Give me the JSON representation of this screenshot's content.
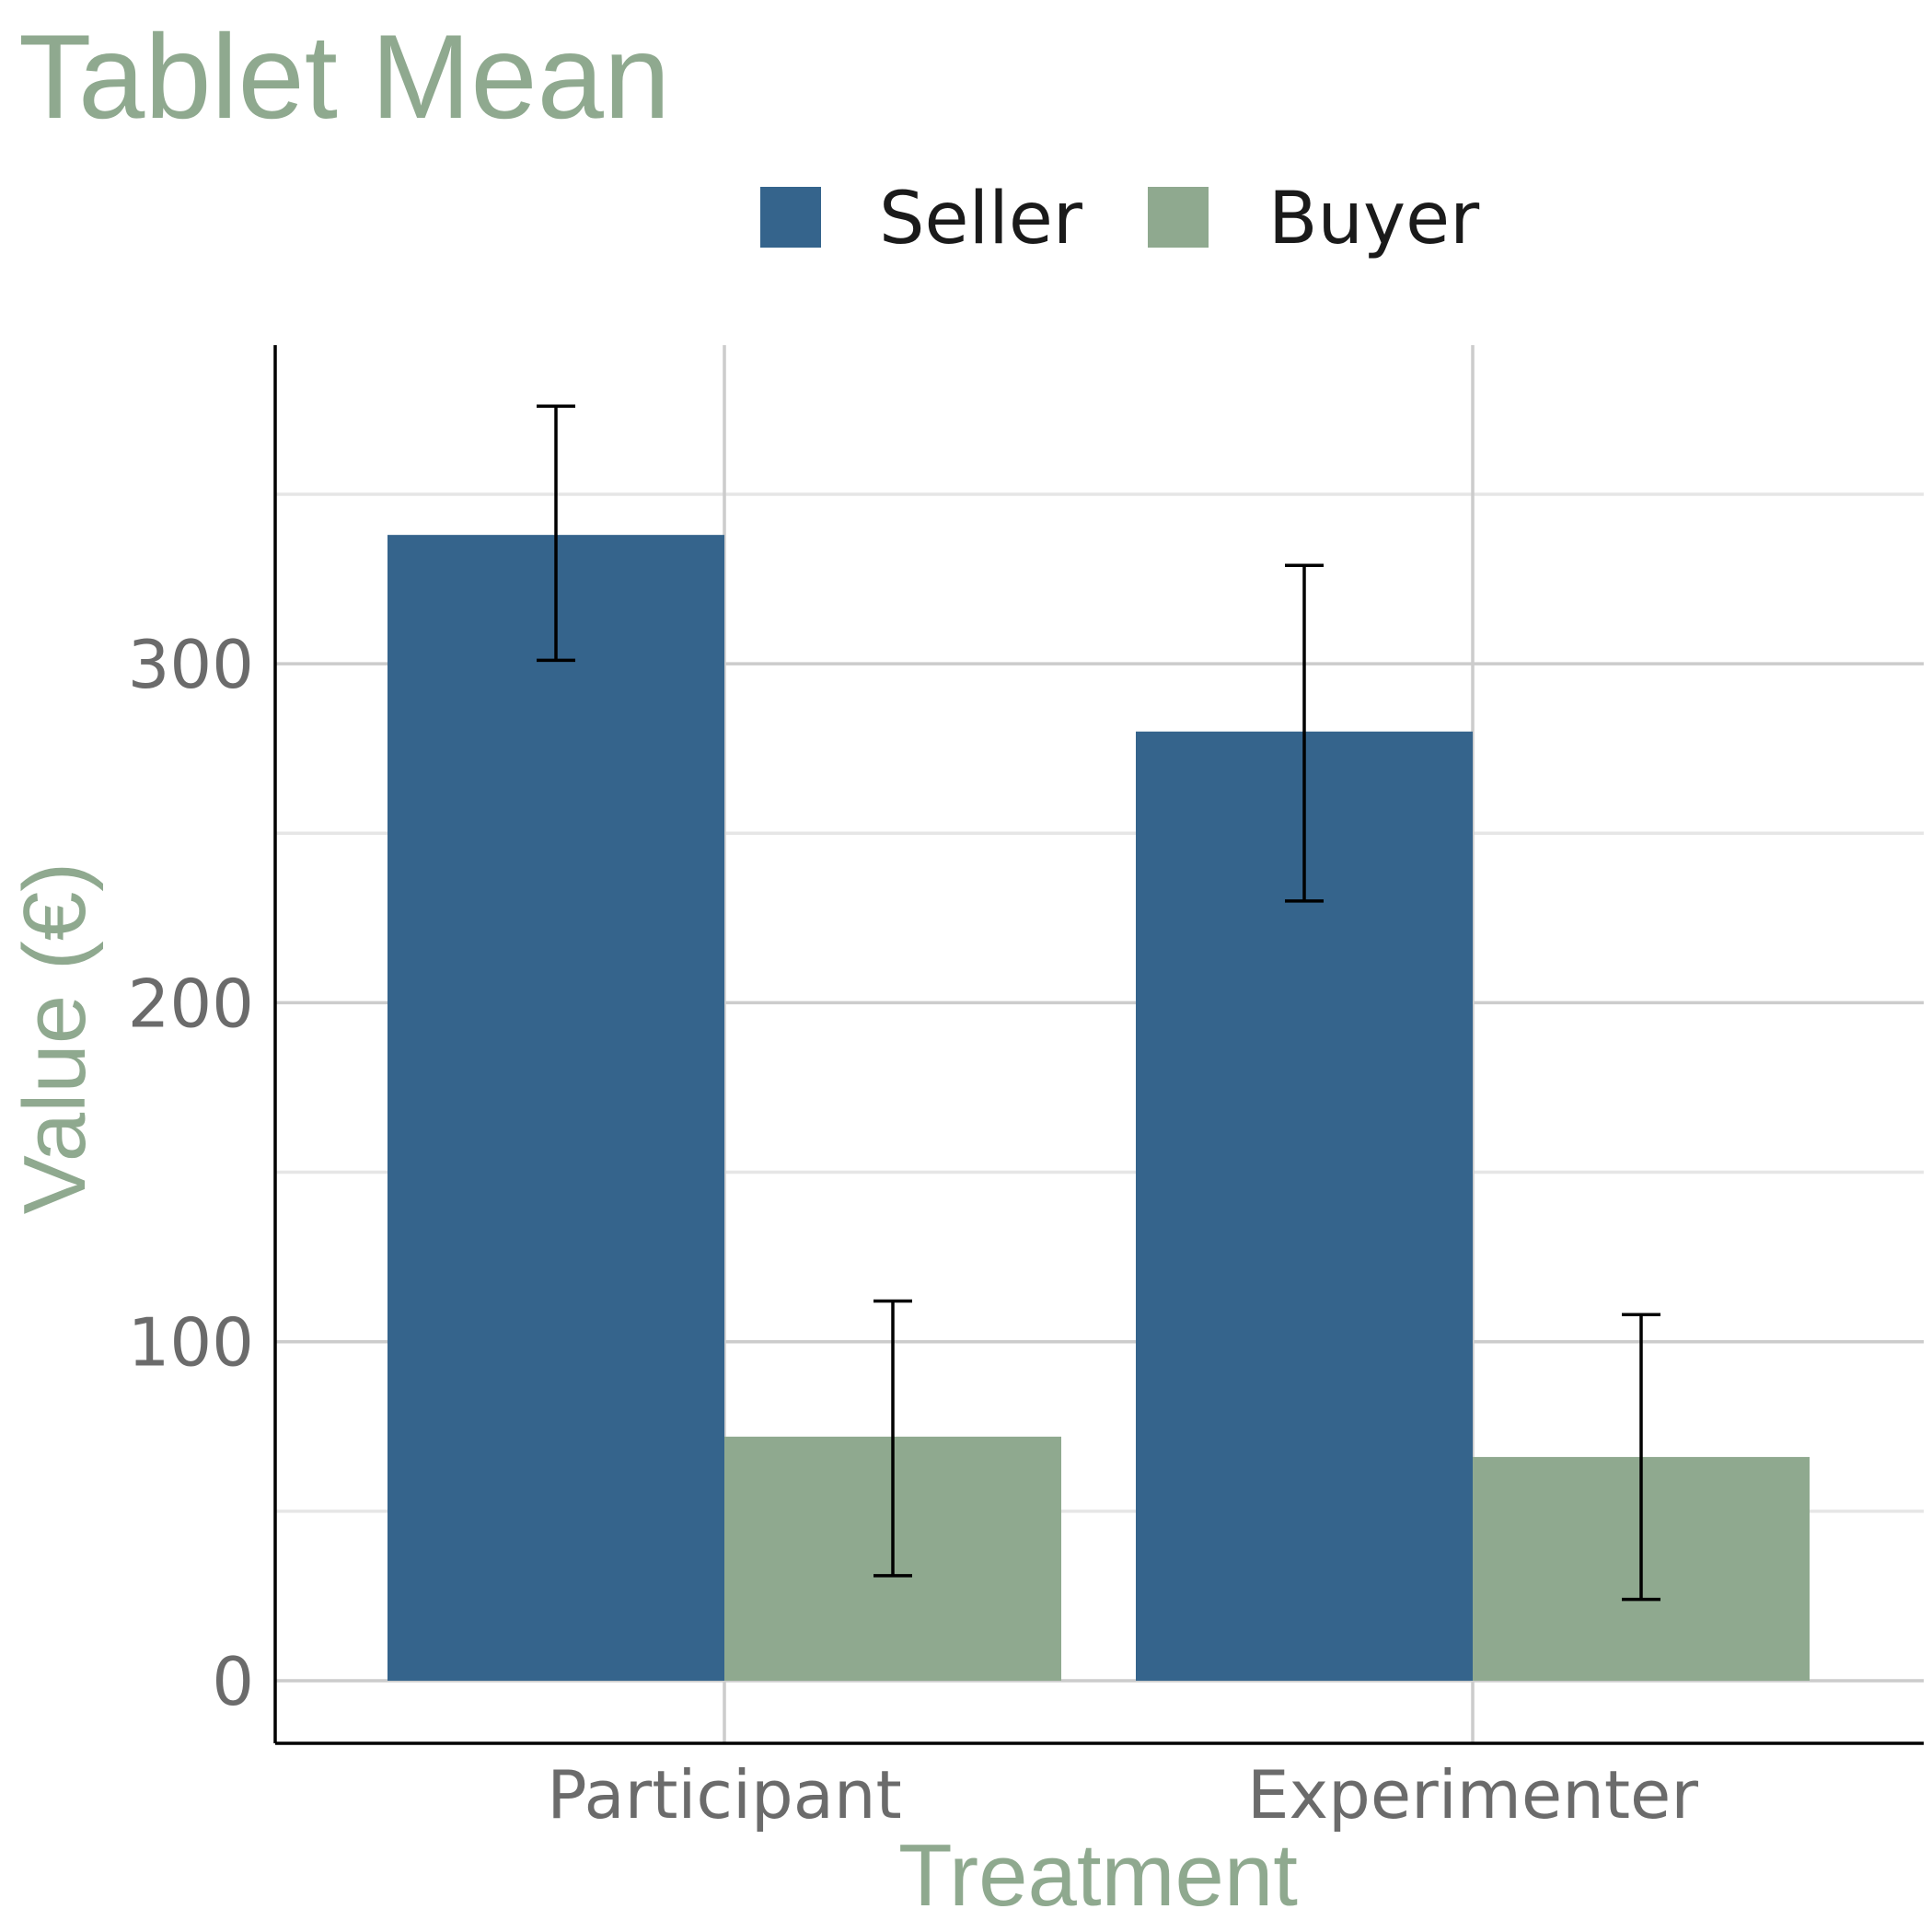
{
  "chart_data": {
    "type": "bar",
    "title": "Tablet Mean",
    "xlabel": "Treatment",
    "ylabel": "Value (€)",
    "categories": [
      "Participant",
      "Experimenter"
    ],
    "series": [
      {
        "name": "Seller",
        "color": "#35648c",
        "values": [
          338,
          280
        ],
        "error_low": [
          301,
          230
        ],
        "error_high": [
          376,
          329
        ]
      },
      {
        "name": "Buyer",
        "color": "#8fa98f",
        "values": [
          72,
          66
        ],
        "error_low": [
          31,
          24
        ],
        "error_high": [
          112,
          108
        ]
      }
    ],
    "yticks": [
      0,
      100,
      200,
      300
    ],
    "ylim": [
      -18,
      395
    ],
    "grid": true,
    "legend_position": "top"
  }
}
